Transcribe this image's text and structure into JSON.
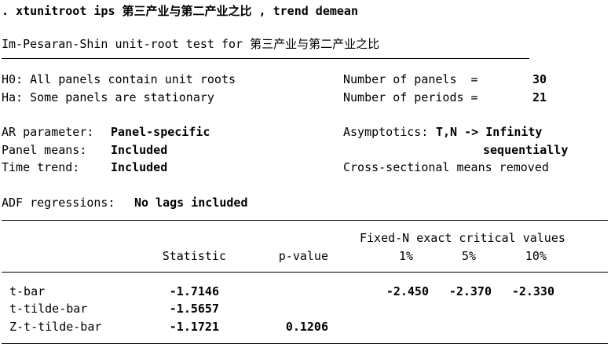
{
  "command": {
    "prefix": ".",
    "text": "xtunitroot ips 第三产业与第二产业之比 , trend demean"
  },
  "title": "Im-Pesaran-Shin unit-root test for 第三产业与第二产业之比",
  "hypotheses": {
    "h0": "H0: All panels contain unit roots",
    "ha": "Ha: Some panels are stationary"
  },
  "panels": {
    "label": "Number of panels  =",
    "value": "30"
  },
  "periods": {
    "label": "Number of periods =",
    "value": "21"
  },
  "ar_parameter": {
    "label": "AR parameter:",
    "value": "Panel-specific"
  },
  "panel_means": {
    "label": "Panel means:",
    "value": "Included"
  },
  "time_trend": {
    "label": "Time trend:",
    "value": "Included"
  },
  "asymptotics": {
    "label": "Asymptotics:",
    "value": "T,N -> Infinity",
    "value2": "sequentially"
  },
  "cross_sectional": "Cross-sectional means removed",
  "adf": {
    "label": "ADF regressions:",
    "value": "No lags included"
  },
  "table": {
    "group_header": "Fixed-N exact critical values",
    "headers": {
      "statistic": "Statistic",
      "pvalue": "p-value",
      "c1": "1%",
      "c5": "5%",
      "c10": "10%"
    },
    "rows": [
      {
        "name": "t-bar",
        "statistic": "-1.7146",
        "pvalue": "",
        "c1": "-2.450",
        "c5": "-2.370",
        "c10": "-2.330"
      },
      {
        "name": "t-tilde-bar",
        "statistic": "-1.5657",
        "pvalue": "",
        "c1": "",
        "c5": "",
        "c10": ""
      },
      {
        "name": "Z-t-tilde-bar",
        "statistic": "-1.1721",
        "pvalue": "0.1206",
        "c1": "",
        "c5": "",
        "c10": ""
      }
    ]
  }
}
